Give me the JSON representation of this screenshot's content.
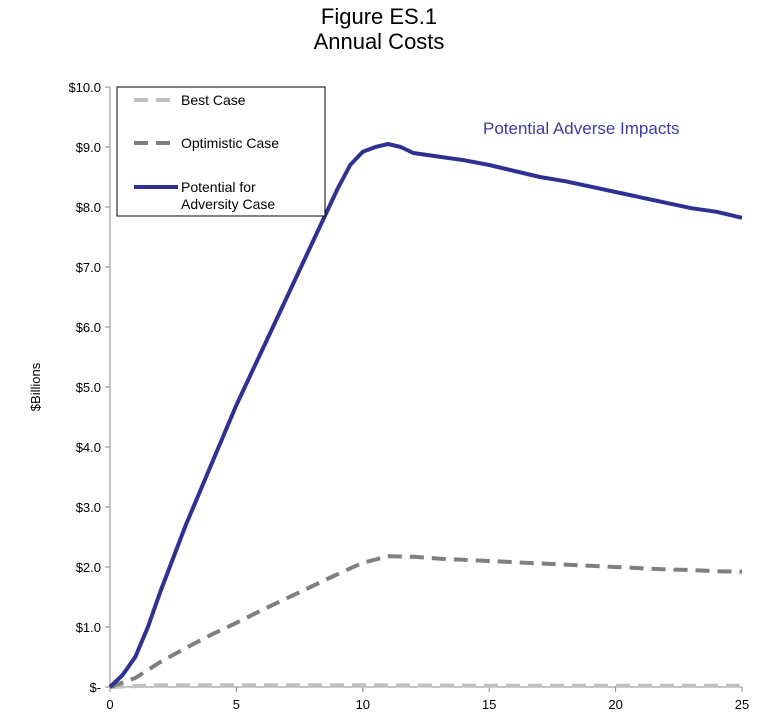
{
  "chart_data": {
    "type": "line",
    "title": "Figure ES.1",
    "subtitle": "Annual Costs",
    "ylabel": "$Billions",
    "xlabel": "",
    "xlim": [
      0,
      25
    ],
    "ylim": [
      0,
      10
    ],
    "x_ticks": [
      "0",
      "5",
      "10",
      "15",
      "20",
      "25"
    ],
    "y_ticks": [
      "$-",
      "$1.0",
      "$2.0",
      "$3.0",
      "$4.0",
      "$5.0",
      "$6.0",
      "$7.0",
      "$8.0",
      "$9.0",
      "$10.0"
    ],
    "grid": false,
    "legend_position": "top-left",
    "annotation": {
      "text": "Potential Adverse Impacts",
      "color": "#3c3ca0"
    },
    "series": [
      {
        "name": "Best Case",
        "color": "#c0c0c0",
        "style": "dashed",
        "x": [
          0,
          2,
          5,
          10,
          15,
          20,
          25
        ],
        "values": [
          0,
          0.03,
          0.03,
          0.03,
          0.02,
          0.02,
          0.02
        ]
      },
      {
        "name": "Optimistic Case",
        "color": "#7f7f7f",
        "style": "dashed",
        "x": [
          0,
          1,
          2,
          3,
          4,
          5,
          6,
          7,
          8,
          9,
          10,
          11,
          12,
          13,
          14,
          15,
          16,
          17,
          18,
          19,
          20,
          21,
          22,
          23,
          24,
          25
        ],
        "values": [
          0,
          0.15,
          0.42,
          0.65,
          0.87,
          1.07,
          1.28,
          1.48,
          1.68,
          1.88,
          2.07,
          2.18,
          2.17,
          2.14,
          2.12,
          2.1,
          2.08,
          2.06,
          2.04,
          2.02,
          2.0,
          1.98,
          1.96,
          1.95,
          1.93,
          1.92
        ]
      },
      {
        "name": "Potential for\nAdversity Case",
        "color": "#2e3192",
        "style": "solid",
        "x": [
          0,
          0.5,
          1,
          1.5,
          2,
          3,
          4,
          5,
          6,
          7,
          8,
          9,
          9.5,
          10,
          10.5,
          11,
          11.5,
          12,
          13,
          14,
          15,
          16,
          17,
          18,
          19,
          20,
          21,
          22,
          23,
          24,
          25
        ],
        "values": [
          0,
          0.2,
          0.5,
          1.0,
          1.6,
          2.7,
          3.7,
          4.7,
          5.6,
          6.5,
          7.4,
          8.3,
          8.7,
          8.92,
          9.0,
          9.05,
          9.0,
          8.9,
          8.84,
          8.78,
          8.7,
          8.6,
          8.5,
          8.43,
          8.34,
          8.25,
          8.16,
          8.07,
          7.98,
          7.92,
          7.82
        ]
      }
    ]
  }
}
